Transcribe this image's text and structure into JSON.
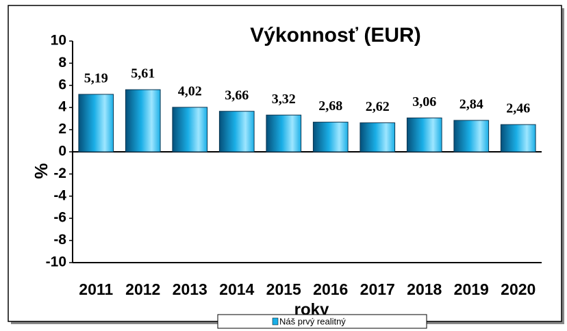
{
  "chart_data": {
    "type": "bar",
    "title": "Výkonnosť (EUR)",
    "x_label": "roky",
    "y_label": "%",
    "categories": [
      "2011",
      "2012",
      "2013",
      "2014",
      "2015",
      "2016",
      "2017",
      "2018",
      "2019",
      "2020"
    ],
    "series": [
      {
        "name": "Náš prvý realitný",
        "color": "#1aaee6",
        "values": [
          5.19,
          5.61,
          4.02,
          3.66,
          3.32,
          2.68,
          2.62,
          3.06,
          2.84,
          2.46
        ],
        "value_labels": [
          "5,19",
          "5,61",
          "4,02",
          "3,66",
          "3,32",
          "2,68",
          "2,62",
          "3,06",
          "2,84",
          "2,46"
        ]
      }
    ],
    "ylim": [
      -10,
      10
    ],
    "yticks": [
      -10,
      -8,
      -6,
      -4,
      -2,
      0,
      2,
      4,
      6,
      8,
      10
    ],
    "grid": false
  }
}
